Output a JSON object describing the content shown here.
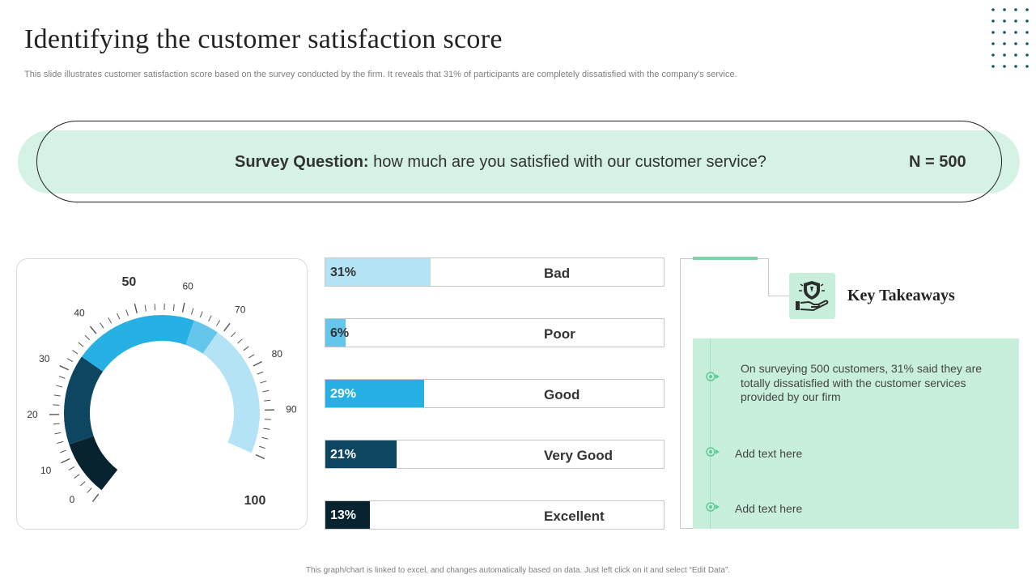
{
  "header": {
    "title": "Identifying the customer satisfaction score",
    "subtitle": "This slide illustrates customer satisfaction score based on the survey conducted by the firm. It reveals that 31% of participants are completely dissatisfied with the company's service."
  },
  "survey": {
    "question_label": "Survey Question:",
    "question_text": "how much are you satisfied with our customer service?",
    "sample_size": "N = 500"
  },
  "gauge": {
    "tick_labels": [
      "0",
      "10",
      "20",
      "30",
      "40",
      "50",
      "60",
      "70",
      "80",
      "90",
      "100"
    ],
    "min": 0,
    "max": 100
  },
  "chart_data": {
    "type": "bar",
    "categories": [
      "Bad",
      "Poor",
      "Good",
      "Very Good",
      "Excellent"
    ],
    "values": [
      31,
      6,
      29,
      21,
      13
    ],
    "value_labels": [
      "31%",
      "6%",
      "29%",
      "21%",
      "13%"
    ],
    "xlim": [
      0,
      100
    ],
    "colors": [
      "#b3e3f4",
      "#65c6ec",
      "#27b0e4",
      "#0e4661",
      "#06232f"
    ],
    "label_colors": [
      "#333333",
      "#333333",
      "#ffffff",
      "#ffffff",
      "#ffffff"
    ]
  },
  "takeaways": {
    "title": "Key Takeaways",
    "items": [
      "On surveying 500 customers, 31% said they are totally dissatisfied with the customer services provided by our firm",
      "Add text here",
      "Add text here"
    ]
  },
  "footer": {
    "note": "This graph/chart is linked to excel, and changes automatically based on data. Just left click on it and select “Edit Data”."
  },
  "colors": {
    "accent_green": "#d5f2e4",
    "panel_green": "#c7efdb",
    "dark_navy": "#06232f"
  }
}
